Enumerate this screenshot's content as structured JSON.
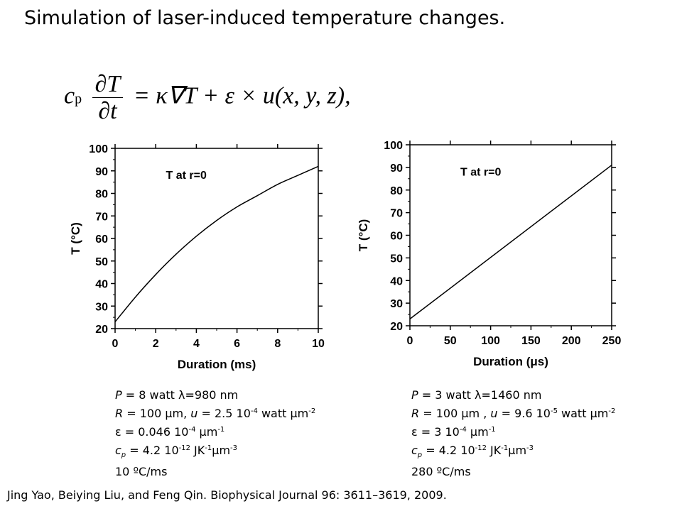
{
  "title": "Simulation of laser-induced temperature changes.",
  "equation": {
    "lhs_coef": "c",
    "lhs_coef_sub": "p",
    "num": "∂T",
    "den": "∂t",
    "rhs": "= κ∇T + ε × u(x, y, z),"
  },
  "chart_data": [
    {
      "type": "line",
      "xlabel": "Duration (ms)",
      "ylabel": "T (°C)",
      "annotation": "T at r=0",
      "xlim": [
        0,
        10
      ],
      "ylim": [
        20,
        100
      ],
      "xticks": [
        0,
        2,
        4,
        6,
        8,
        10
      ],
      "yticks": [
        20,
        30,
        40,
        50,
        60,
        70,
        80,
        90,
        100
      ],
      "series": [
        {
          "x": [
            0,
            1,
            2,
            3,
            4,
            5,
            6,
            7,
            8,
            9,
            10
          ],
          "y": [
            23,
            34,
            44,
            53,
            61,
            68,
            74,
            79,
            84,
            88,
            92
          ]
        }
      ]
    },
    {
      "type": "line",
      "xlabel": "Duration (μs)",
      "ylabel": "T (°C)",
      "annotation": "T at r=0",
      "xlim": [
        0,
        250
      ],
      "ylim": [
        20,
        100
      ],
      "xticks": [
        0,
        50,
        100,
        150,
        200,
        250
      ],
      "yticks": [
        20,
        30,
        40,
        50,
        60,
        70,
        80,
        90,
        100
      ],
      "series": [
        {
          "x": [
            0,
            250
          ],
          "y": [
            23,
            91
          ]
        }
      ]
    }
  ],
  "params_left": {
    "p_label": "P",
    "p_value": " = 8 watt ",
    "lambda_sym": "λ",
    "lambda_value": "=980 nm",
    "r_label": "R",
    "r_value": " = 100 ",
    "mu": "μ",
    "r_unit": "m, ",
    "u_label": "u",
    "u_value": " = 2.5 10",
    "u_exp": "-4",
    "u_unit": " watt ",
    "u_unit_mu": "μ",
    "u_unit_m": "m",
    "u_unit_exp": "-2",
    "eps_sym": "ε",
    "eps_value": " =  0.046 10",
    "eps_exp": "-4",
    "eps_mu": " μ",
    "eps_m": "m",
    "eps_m_exp": "-1",
    "cp_label": "c",
    "cp_sub": "p",
    "cp_value": " = 4.2 10",
    "cp_exp": "-12",
    "cp_unit": " JK",
    "cp_unit_exp": "-1",
    "cp_mu": "μ",
    "cp_m": "m",
    "cp_m_exp": "-3",
    "rate": "10 ºC/ms"
  },
  "params_right": {
    "p_label": "P",
    "p_value": " = 3 watt ",
    "lambda_sym": "λ",
    "lambda_value": "=1460 nm",
    "r_label": "R",
    "r_value": " = 100 ",
    "mu": "μ",
    "r_unit": "m , ",
    "u_label": "u",
    "u_value": " = 9.6 10",
    "u_exp": "-5",
    "u_unit": " watt ",
    "u_unit_mu": "μ",
    "u_unit_m": "m",
    "u_unit_exp": "-2",
    "eps_sym": "ε",
    "eps_value": " = 3 10",
    "eps_exp": "-4",
    "eps_mu": " μ",
    "eps_m": "m",
    "eps_m_exp": "-1",
    "cp_label": "c",
    "cp_sub": "p",
    "cp_value": " = 4.2 10",
    "cp_exp": "-12",
    "cp_unit": " JK",
    "cp_unit_exp": "-1",
    "cp_mu": "μ",
    "cp_m": "m",
    "cp_m_exp": "-3",
    "rate": "280 ºC/ms"
  },
  "reference": "Jing Yao, Beiying Liu, and Feng Qin. Biophysical Journal 96: 3611–3619, 2009."
}
